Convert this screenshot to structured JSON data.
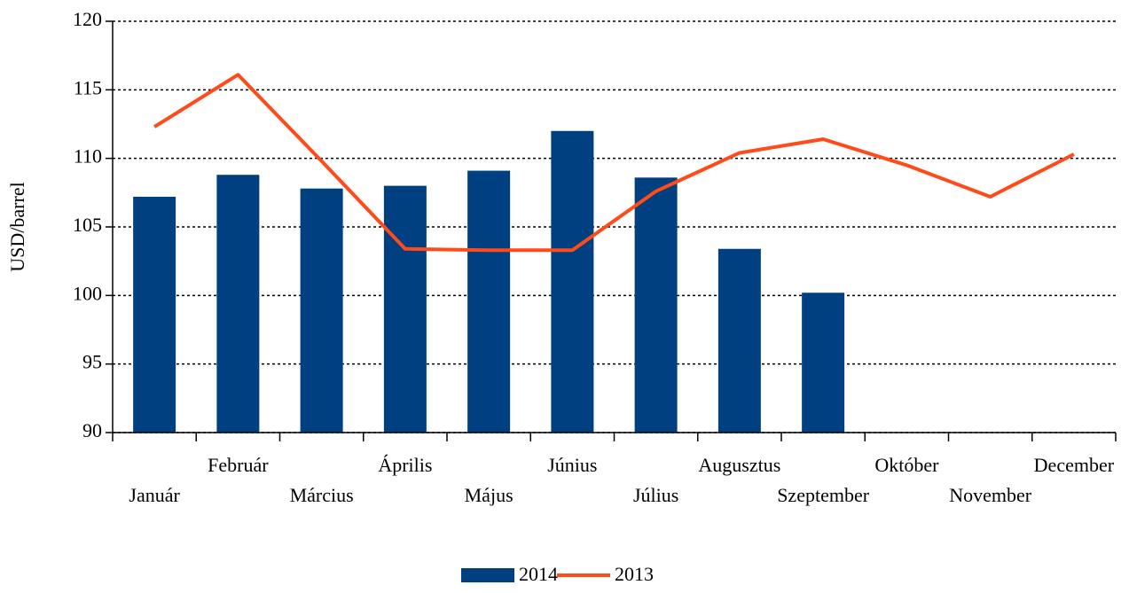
{
  "chart_data": {
    "type": "bar",
    "y_label": "USD/barrel",
    "categories": [
      "Január",
      "Február",
      "Március",
      "Április",
      "Május",
      "Június",
      "Július",
      "Augusztus",
      "Szeptember",
      "Október",
      "November",
      "December"
    ],
    "series": [
      {
        "name": "2014",
        "type": "bar",
        "color": "#004080",
        "values": [
          107.2,
          108.8,
          107.8,
          108.0,
          109.1,
          112.0,
          108.6,
          103.4,
          100.2,
          null,
          null,
          null
        ]
      },
      {
        "name": "2013",
        "type": "line",
        "color": "#ff4a1a",
        "values": [
          112.3,
          116.1,
          109.8,
          103.4,
          103.3,
          103.3,
          107.6,
          110.4,
          111.4,
          109.5,
          107.2,
          110.3
        ]
      }
    ],
    "ylim": [
      90,
      120
    ],
    "yticks": [
      90,
      95,
      100,
      105,
      110,
      115,
      120
    ],
    "grid": true,
    "legend": "bottom"
  }
}
